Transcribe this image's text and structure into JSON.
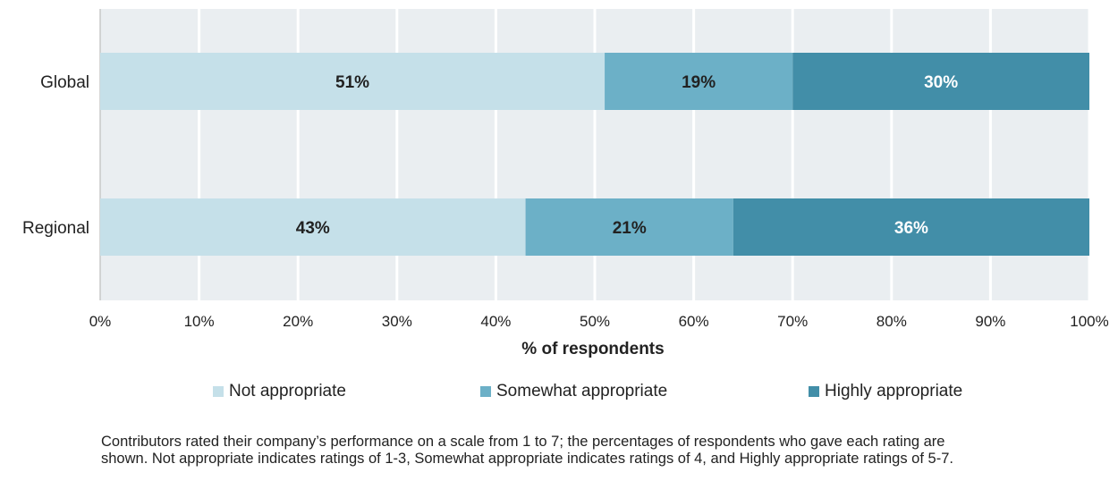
{
  "chart_data": {
    "type": "bar",
    "orientation": "horizontal",
    "stacked": true,
    "categories": [
      "Global",
      "Regional"
    ],
    "series": [
      {
        "name": "Not appropriate",
        "values": [
          51,
          43
        ],
        "color": "#c5e0e9"
      },
      {
        "name": "Somewhat appropriate",
        "values": [
          19,
          21
        ],
        "color": "#6cb0c7"
      },
      {
        "name": "Highly appropriate",
        "values": [
          30,
          36
        ],
        "color": "#428ea8"
      }
    ],
    "data_labels": [
      [
        "51%",
        "43%"
      ],
      [
        "19%",
        "21%"
      ],
      [
        "30%",
        "36%"
      ]
    ],
    "data_label_colors": [
      "#222222",
      "#222222",
      "#ffffff"
    ],
    "xlabel": "% of respondents",
    "xlim": [
      0,
      100
    ],
    "xticks": [
      "0%",
      "10%",
      "20%",
      "30%",
      "40%",
      "50%",
      "60%",
      "70%",
      "80%",
      "90%",
      "100%"
    ],
    "grid": true,
    "legend_position": "bottom",
    "background_color": "#eaeef1"
  },
  "legend": {
    "items": [
      {
        "label": "Not appropriate",
        "color": "#c5e0e9"
      },
      {
        "label": "Somewhat appropriate",
        "color": "#6cb0c7"
      },
      {
        "label": "Highly appropriate",
        "color": "#428ea8"
      }
    ]
  },
  "note": {
    "line1": "Contributors rated their company’s performance on a scale from 1 to 7; the percentages of respondents who gave each rating are",
    "line2": "shown. Not appropriate indicates ratings of 1-3, Somewhat appropriate indicates ratings of 4, and Highly appropriate ratings of 5-7."
  }
}
